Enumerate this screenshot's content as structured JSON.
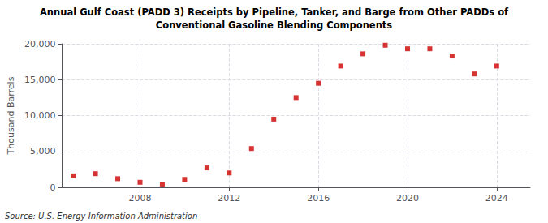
{
  "chart_data": {
    "type": "scatter",
    "title": "Annual Gulf Coast (PADD 3) Receipts by Pipeline, Tanker, and Barge from Other PADDs of",
    "subtitle": "Conventional Gasoline Blending Components",
    "ylabel": "Thousand Barrels",
    "annotations": [
      "Source: U.S. Energy Information Administration"
    ],
    "x": [
      2005,
      2006,
      2007,
      2008,
      2009,
      2010,
      2011,
      2012,
      2013,
      2014,
      2015,
      2016,
      2017,
      2018,
      2019,
      2020,
      2021,
      2022,
      2023,
      2024
    ],
    "values": [
      1600,
      1900,
      1200,
      700,
      450,
      1100,
      2700,
      2000,
      5400,
      9500,
      12500,
      14500,
      16900,
      18600,
      19800,
      19300,
      19300,
      18300,
      15800,
      16900
    ],
    "color": "#cc0000",
    "marker": "square",
    "xlim": [
      2004.5,
      2025.5
    ],
    "xticks": [
      2008,
      2012,
      2016,
      2020,
      2024
    ],
    "ylim": [
      0,
      20000
    ],
    "yticks": [
      0,
      {
        "value": 5000,
        "label": "5,000"
      },
      {
        "value": 10000,
        "label": "10,000"
      },
      {
        "value": 15000,
        "label": "15,000"
      },
      {
        "value": 20000,
        "label": "20,000"
      }
    ],
    "grid": true
  }
}
